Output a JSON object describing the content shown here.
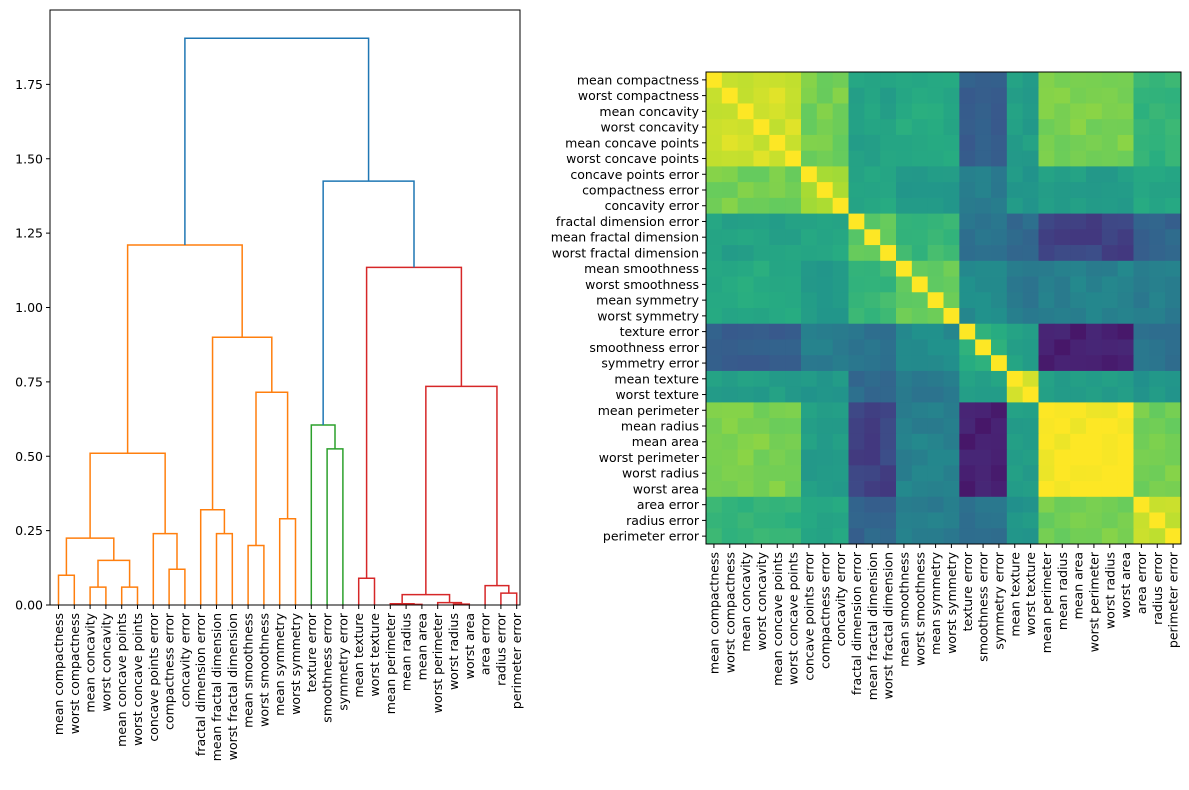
{
  "chart_data": [
    {
      "type": "dendrogram",
      "title": "",
      "xlabel": "",
      "ylabel": "",
      "ylim": [
        0,
        2.0
      ],
      "yticks": [
        0.0,
        0.25,
        0.5,
        0.75,
        1.0,
        1.25,
        1.5,
        1.75
      ],
      "ytick_labels": [
        "0.00",
        "0.25",
        "0.50",
        "0.75",
        "1.00",
        "1.25",
        "1.50",
        "1.75"
      ],
      "leaves": [
        "mean compactness",
        "worst compactness",
        "mean concavity",
        "worst concavity",
        "mean concave points",
        "worst concave points",
        "concave points error",
        "compactness error",
        "concavity error",
        "fractal dimension error",
        "mean fractal dimension",
        "worst fractal dimension",
        "mean smoothness",
        "worst smoothness",
        "mean symmetry",
        "worst symmetry",
        "texture error",
        "smoothness error",
        "symmetry error",
        "mean texture",
        "worst texture",
        "mean perimeter",
        "mean radius",
        "mean area",
        "worst perimeter",
        "worst radius",
        "worst area",
        "area error",
        "radius error",
        "perimeter error"
      ],
      "colors": {
        "C1": "#ff7f0e",
        "C2": "#2ca02c",
        "C3": "#d62728",
        "C0": "#1f77b4"
      },
      "merges": [
        {
          "left": "L0",
          "right": "L1",
          "height": 0.1,
          "color": "C1"
        },
        {
          "left": "L2",
          "right": "L3",
          "height": 0.06,
          "color": "C1"
        },
        {
          "left": "L4",
          "right": "L5",
          "height": 0.06,
          "color": "C1"
        },
        {
          "left": "M1",
          "right": "M2",
          "height": 0.15,
          "color": "C1"
        },
        {
          "left": "M0",
          "right": "M3",
          "height": 0.225,
          "color": "C1"
        },
        {
          "left": "L7",
          "right": "L8",
          "height": 0.12,
          "color": "C1"
        },
        {
          "left": "L6",
          "right": "M5",
          "height": 0.24,
          "color": "C1"
        },
        {
          "left": "M4",
          "right": "M6",
          "height": 0.51,
          "color": "C1"
        },
        {
          "left": "L10",
          "right": "L11",
          "height": 0.24,
          "color": "C1"
        },
        {
          "left": "L9",
          "right": "M8",
          "height": 0.32,
          "color": "C1"
        },
        {
          "left": "L12",
          "right": "L13",
          "height": 0.2,
          "color": "C1"
        },
        {
          "left": "L14",
          "right": "L15",
          "height": 0.29,
          "color": "C1"
        },
        {
          "left": "M10",
          "right": "M11",
          "height": 0.715,
          "color": "C1"
        },
        {
          "left": "M9",
          "right": "M12",
          "height": 0.9,
          "color": "C1"
        },
        {
          "left": "M7",
          "right": "M13",
          "height": 1.21,
          "color": "C1"
        },
        {
          "left": "L17",
          "right": "L18",
          "height": 0.525,
          "color": "C2"
        },
        {
          "left": "L16",
          "right": "M15",
          "height": 0.605,
          "color": "C2"
        },
        {
          "left": "L19",
          "right": "L20",
          "height": 0.09,
          "color": "C3"
        },
        {
          "left": "L22",
          "right": "L23",
          "height": 0.002,
          "color": "C3"
        },
        {
          "left": "L21",
          "right": "M18",
          "height": 0.004,
          "color": "C3"
        },
        {
          "left": "L25",
          "right": "L26",
          "height": 0.003,
          "color": "C3"
        },
        {
          "left": "L24",
          "right": "M20",
          "height": 0.008,
          "color": "C3"
        },
        {
          "left": "M19",
          "right": "M21",
          "height": 0.035,
          "color": "C3"
        },
        {
          "left": "L28",
          "right": "L29",
          "height": 0.04,
          "color": "C3"
        },
        {
          "left": "L27",
          "right": "M23",
          "height": 0.065,
          "color": "C3"
        },
        {
          "left": "M22",
          "right": "M24",
          "height": 0.735,
          "color": "C3"
        },
        {
          "left": "M17",
          "right": "M25",
          "height": 1.135,
          "color": "C3"
        },
        {
          "left": "M16",
          "right": "M26",
          "height": 1.425,
          "color": "C0"
        },
        {
          "left": "M14",
          "right": "M27",
          "height": 1.905,
          "color": "C0"
        }
      ]
    },
    {
      "type": "heatmap",
      "title": "",
      "colormap": "viridis",
      "value_range": [
        -1,
        1
      ],
      "labels": [
        "mean compactness",
        "worst compactness",
        "mean concavity",
        "worst concavity",
        "mean concave points",
        "worst concave points",
        "concave points error",
        "compactness error",
        "concavity error",
        "fractal dimension error",
        "mean fractal dimension",
        "worst fractal dimension",
        "mean smoothness",
        "worst smoothness",
        "mean symmetry",
        "worst symmetry",
        "texture error",
        "smoothness error",
        "symmetry error",
        "mean texture",
        "worst texture",
        "mean perimeter",
        "mean radius",
        "mean area",
        "worst perimeter",
        "worst radius",
        "worst area",
        "area error",
        "radius error",
        "perimeter error"
      ],
      "group_of_label": [
        0,
        0,
        0,
        0,
        0,
        0,
        1,
        1,
        1,
        2,
        2,
        2,
        3,
        3,
        3,
        3,
        4,
        4,
        4,
        5,
        5,
        6,
        6,
        6,
        6,
        6,
        6,
        7,
        7,
        7
      ],
      "within_group_corr": [
        0.88,
        0.72,
        0.52,
        0.55,
        0.3,
        0.92,
        0.98,
        0.84
      ],
      "between_group_corr": [
        [
          0.88,
          0.58,
          0.15,
          0.22,
          -0.42,
          0.12,
          0.6,
          0.3
        ],
        [
          0.58,
          0.72,
          0.18,
          0.1,
          -0.15,
          0.06,
          0.12,
          0.2
        ],
        [
          0.15,
          0.18,
          0.52,
          0.35,
          -0.25,
          -0.3,
          -0.58,
          -0.35
        ],
        [
          0.22,
          0.1,
          0.35,
          0.55,
          -0.05,
          -0.2,
          -0.12,
          -0.15
        ],
        [
          -0.42,
          -0.15,
          -0.25,
          -0.05,
          0.3,
          0.15,
          -0.78,
          -0.25
        ],
        [
          0.12,
          0.06,
          -0.3,
          -0.2,
          0.15,
          0.92,
          0.12,
          0.05
        ],
        [
          0.6,
          0.12,
          -0.58,
          -0.12,
          -0.78,
          0.12,
          0.98,
          0.58
        ],
        [
          0.3,
          0.2,
          -0.35,
          -0.15,
          -0.25,
          0.05,
          0.58,
          0.84
        ]
      ]
    }
  ]
}
